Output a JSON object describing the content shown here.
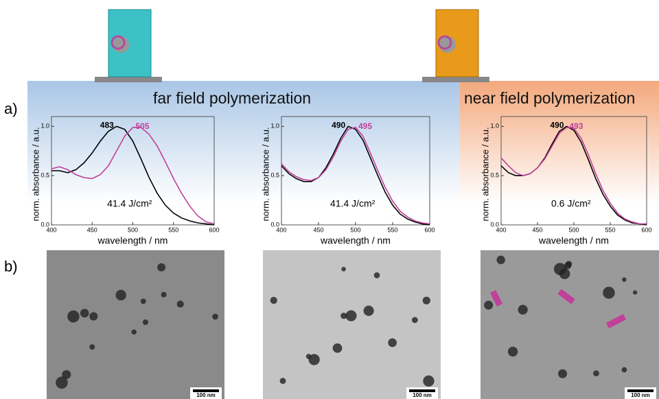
{
  "labels": {
    "a": "a)",
    "b": "b)"
  },
  "headers": [
    "far field polymerization",
    "near field polymerization"
  ],
  "scale_bars": [
    "100 nm",
    "100 nm",
    "100 nm"
  ],
  "chart_data": [
    {
      "type": "line",
      "xlabel": "wavelength / nm",
      "ylabel": "norm. absorbance / a.u.",
      "annotation": "41.4 J/cm²",
      "x": [
        400,
        410,
        420,
        430,
        440,
        450,
        460,
        470,
        480,
        490,
        500,
        510,
        520,
        530,
        540,
        550,
        560,
        570,
        580,
        590,
        600
      ],
      "xlim": [
        400,
        600
      ],
      "ylim": [
        0,
        1.1
      ],
      "xticks": [
        400,
        450,
        500,
        550,
        600
      ],
      "yticks": [
        {
          "value": 0,
          "label": "0.0"
        },
        {
          "value": 0.5,
          "label": "0.5"
        },
        {
          "value": 1,
          "label": "1.0"
        }
      ],
      "series": [
        {
          "color": "#000000",
          "peak_label": "483",
          "values": [
            0.55,
            0.55,
            0.53,
            0.56,
            0.63,
            0.73,
            0.85,
            0.95,
            1.0,
            0.97,
            0.85,
            0.67,
            0.48,
            0.32,
            0.2,
            0.12,
            0.07,
            0.04,
            0.02,
            0.01,
            0.0
          ]
        },
        {
          "color": "#c0409a",
          "peak_label": "505",
          "values": [
            0.57,
            0.59,
            0.56,
            0.51,
            0.48,
            0.47,
            0.51,
            0.6,
            0.75,
            0.9,
            0.99,
            0.99,
            0.92,
            0.8,
            0.64,
            0.47,
            0.32,
            0.19,
            0.09,
            0.03,
            0.01
          ]
        }
      ]
    },
    {
      "type": "line",
      "xlabel": "wavelength / nm",
      "ylabel": "norm. absorbance / a.u.",
      "annotation": "41.4 J/cm²",
      "x": [
        400,
        410,
        420,
        430,
        440,
        450,
        460,
        470,
        480,
        490,
        500,
        510,
        520,
        530,
        540,
        550,
        560,
        570,
        580,
        590,
        600
      ],
      "xlim": [
        400,
        600
      ],
      "ylim": [
        0,
        1.1
      ],
      "xticks": [
        400,
        450,
        500,
        550,
        600
      ],
      "yticks": [
        {
          "value": 0,
          "label": "0.0"
        },
        {
          "value": 0.5,
          "label": "0.5"
        },
        {
          "value": 1,
          "label": "1.0"
        }
      ],
      "series": [
        {
          "color": "#000000",
          "peak_label": "490",
          "values": [
            0.6,
            0.52,
            0.47,
            0.44,
            0.44,
            0.48,
            0.58,
            0.72,
            0.88,
            1.0,
            0.97,
            0.86,
            0.68,
            0.5,
            0.33,
            0.2,
            0.11,
            0.06,
            0.03,
            0.01,
            0.0
          ]
        },
        {
          "color": "#c0409a",
          "peak_label": "495",
          "values": [
            0.62,
            0.54,
            0.49,
            0.46,
            0.45,
            0.48,
            0.56,
            0.69,
            0.85,
            0.97,
            0.99,
            0.9,
            0.73,
            0.55,
            0.38,
            0.24,
            0.14,
            0.08,
            0.04,
            0.02,
            0.01
          ]
        }
      ]
    },
    {
      "type": "line",
      "xlabel": "wavelength / nm",
      "ylabel": "norm. absorbance / a.u.",
      "annotation": "0.6 J/cm²",
      "x": [
        400,
        410,
        420,
        430,
        440,
        450,
        460,
        470,
        480,
        490,
        500,
        510,
        520,
        530,
        540,
        550,
        560,
        570,
        580,
        590,
        600
      ],
      "xlim": [
        400,
        600
      ],
      "ylim": [
        0,
        1.1
      ],
      "xticks": [
        400,
        450,
        500,
        550,
        600
      ],
      "yticks": [
        {
          "value": 0,
          "label": "0.0"
        },
        {
          "value": 0.5,
          "label": "0.5"
        },
        {
          "value": 1,
          "label": "1.0"
        }
      ],
      "series": [
        {
          "color": "#000000",
          "peak_label": "490",
          "values": [
            0.6,
            0.53,
            0.5,
            0.5,
            0.52,
            0.58,
            0.68,
            0.82,
            0.95,
            1.0,
            0.96,
            0.84,
            0.66,
            0.47,
            0.31,
            0.19,
            0.1,
            0.05,
            0.02,
            0.01,
            0.0
          ]
        },
        {
          "color": "#c0409a",
          "peak_label": "493",
          "values": [
            0.68,
            0.6,
            0.53,
            0.5,
            0.52,
            0.58,
            0.67,
            0.8,
            0.93,
            0.99,
            0.98,
            0.88,
            0.71,
            0.52,
            0.35,
            0.22,
            0.12,
            0.06,
            0.03,
            0.01,
            0.01
          ]
        }
      ]
    }
  ]
}
